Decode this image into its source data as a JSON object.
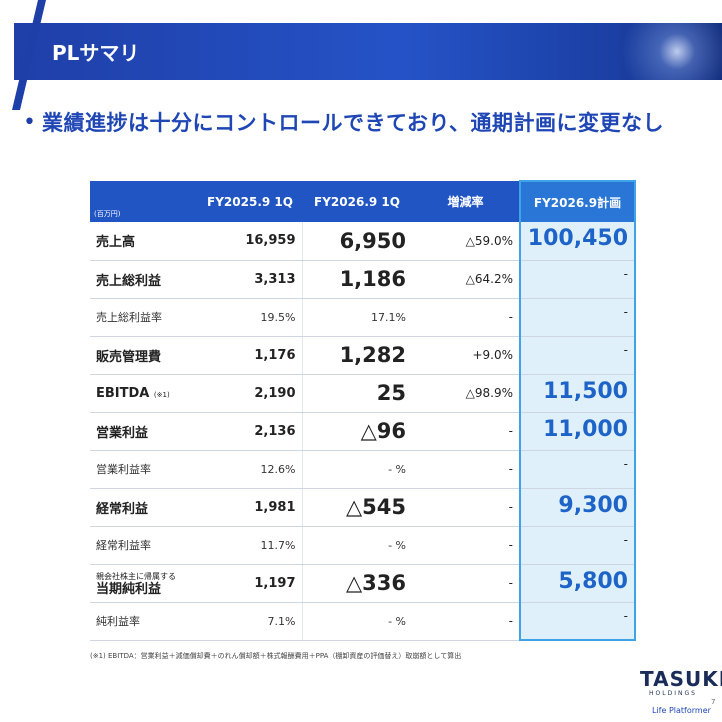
{
  "header": {
    "title": "PLサマリ"
  },
  "headline": {
    "bullet": "•",
    "text": "業績進捗は十分にコントロールできており、通期計画に変更なし"
  },
  "table": {
    "unit": "(百万円)",
    "columns": [
      "FY2025.9 1Q",
      "FY2026.9 1Q",
      "増減率",
      "FY2026.9計画"
    ],
    "rows": [
      {
        "label": "売上高",
        "fy25": "16,959",
        "fy26": "6,950",
        "change": "△59.0%",
        "plan": "100,450"
      },
      {
        "label": "売上総利益",
        "fy25": "3,313",
        "fy26": "1,186",
        "change": "△64.2%",
        "plan": "-"
      },
      {
        "label": "売上総利益率",
        "fy25": "19.5%",
        "fy26": "17.1%",
        "change": "-",
        "plan": "-"
      },
      {
        "label": "販売管理費",
        "fy25": "1,176",
        "fy26": "1,282",
        "change": "+9.0%",
        "plan": "-"
      },
      {
        "label": "EBITDA",
        "note": "(※1)",
        "fy25": "2,190",
        "fy26": "25",
        "change": "△98.9%",
        "plan": "11,500"
      },
      {
        "label": "営業利益",
        "fy25": "2,136",
        "fy26": "△96",
        "change": "-",
        "plan": "11,000"
      },
      {
        "label": "営業利益率",
        "fy25": "12.6%",
        "fy26": "- %",
        "change": "-",
        "plan": "-"
      },
      {
        "label": "経常利益",
        "fy25": "1,981",
        "fy26": "△545",
        "change": "-",
        "plan": "9,300"
      },
      {
        "label": "経常利益率",
        "fy25": "11.7%",
        "fy26": "- %",
        "change": "-",
        "plan": "-"
      },
      {
        "label_top": "親会社株主に帰属する",
        "label": "当期純利益",
        "fy25": "1,197",
        "fy26": "△336",
        "change": "-",
        "plan": "5,800"
      },
      {
        "label": "純利益率",
        "fy25": "7.1%",
        "fy26": "- %",
        "change": "-",
        "plan": "-"
      }
    ]
  },
  "footnote": "(※1) EBITDA：営業利益＋減価償却費＋のれん償却額＋株式報酬費用＋PPA（棚卸資産の評価替え）取崩額として算出",
  "footer": {
    "logo": "TASUKI",
    "holdings": "HOLDINGS",
    "tagline": "Life Platformer",
    "page": "7"
  },
  "colors": {
    "brand_blue": "#1f46b5",
    "plan_highlight": "#dff0fb"
  }
}
